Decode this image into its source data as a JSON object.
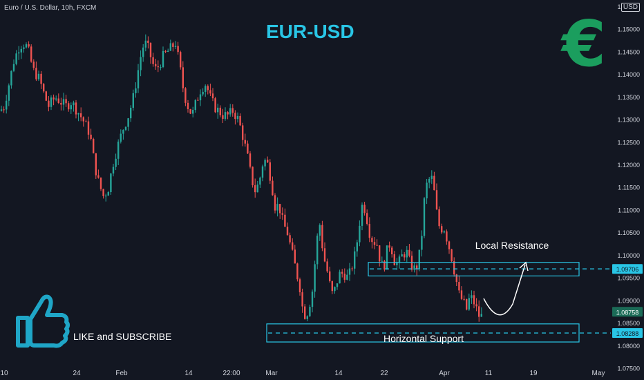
{
  "header": {
    "symbol": "Euro / U.S. Dollar, 10h, FXCM",
    "currency": "USD",
    "title": "EUR-USD",
    "euro_glyph": "€",
    "like_text": "LIKE and SUBSCRIBE"
  },
  "chart_data": {
    "type": "candlestick",
    "title": "EUR-USD",
    "x_ticks": [
      "10",
      "24",
      "Feb",
      "14",
      "22:00",
      "Mar",
      "14",
      "22",
      "Apr",
      "11",
      "19",
      "May"
    ],
    "y_ticks": [
      1.075,
      1.08,
      1.085,
      1.09,
      1.095,
      1.1,
      1.105,
      1.11,
      1.115,
      1.12,
      1.125,
      1.13,
      1.135,
      1.14,
      1.145,
      1.15,
      1.155
    ],
    "ylim": [
      1.0725,
      1.1565
    ],
    "price_path": [
      [
        0,
        1.132
      ],
      [
        6,
        1.133
      ],
      [
        13,
        1.138
      ],
      [
        20,
        1.143
      ],
      [
        27,
        1.146
      ],
      [
        33,
        1.147
      ],
      [
        40,
        1.146
      ],
      [
        48,
        1.141
      ],
      [
        57,
        1.139
      ],
      [
        63,
        1.136
      ],
      [
        70,
        1.133
      ],
      [
        80,
        1.135
      ],
      [
        88,
        1.134
      ],
      [
        95,
        1.133
      ],
      [
        103,
        1.134
      ],
      [
        112,
        1.132
      ],
      [
        120,
        1.13
      ],
      [
        130,
        1.127
      ],
      [
        137,
        1.12
      ],
      [
        143,
        1.116
      ],
      [
        150,
        1.113
      ],
      [
        157,
        1.115
      ],
      [
        163,
        1.12
      ],
      [
        170,
        1.124
      ],
      [
        178,
        1.128
      ],
      [
        186,
        1.131
      ],
      [
        193,
        1.135
      ],
      [
        200,
        1.141
      ],
      [
        206,
        1.146
      ],
      [
        212,
        1.147
      ],
      [
        218,
        1.144
      ],
      [
        224,
        1.141
      ],
      [
        230,
        1.142
      ],
      [
        236,
        1.144
      ],
      [
        242,
        1.145
      ],
      [
        248,
        1.146
      ],
      [
        254,
        1.147
      ],
      [
        260,
        1.142
      ],
      [
        266,
        1.136
      ],
      [
        272,
        1.133
      ],
      [
        278,
        1.131
      ],
      [
        284,
        1.134
      ],
      [
        291,
        1.137
      ],
      [
        298,
        1.138
      ],
      [
        304,
        1.135
      ],
      [
        310,
        1.133
      ],
      [
        316,
        1.132
      ],
      [
        323,
        1.131
      ],
      [
        330,
        1.131
      ],
      [
        337,
        1.132
      ],
      [
        345,
        1.13
      ],
      [
        352,
        1.126
      ],
      [
        358,
        1.122
      ],
      [
        364,
        1.117
      ],
      [
        370,
        1.114
      ],
      [
        376,
        1.117
      ],
      [
        381,
        1.121
      ],
      [
        386,
        1.121
      ],
      [
        392,
        1.117
      ],
      [
        398,
        1.111
      ],
      [
        404,
        1.111
      ],
      [
        410,
        1.107
      ],
      [
        416,
        1.105
      ],
      [
        422,
        1.101
      ],
      [
        428,
        1.097
      ],
      [
        434,
        1.093
      ],
      [
        439,
        1.087
      ],
      [
        444,
        1.087
      ],
      [
        449,
        1.09
      ],
      [
        453,
        1.093
      ],
      [
        458,
        1.103
      ],
      [
        463,
        1.107
      ],
      [
        468,
        1.1
      ],
      [
        473,
        1.097
      ],
      [
        478,
        1.093
      ],
      [
        482,
        1.091
      ],
      [
        487,
        1.094
      ],
      [
        492,
        1.096
      ],
      [
        498,
        1.096
      ],
      [
        504,
        1.095
      ],
      [
        510,
        1.098
      ],
      [
        515,
        1.101
      ],
      [
        520,
        1.107
      ],
      [
        525,
        1.112
      ],
      [
        530,
        1.109
      ],
      [
        535,
        1.105
      ],
      [
        540,
        1.103
      ],
      [
        545,
        1.103
      ],
      [
        550,
        1.099
      ],
      [
        555,
        1.097
      ],
      [
        560,
        1.101
      ],
      [
        565,
        1.103
      ],
      [
        570,
        1.099
      ],
      [
        576,
        1.098
      ],
      [
        582,
        1.1
      ],
      [
        588,
        1.101
      ],
      [
        594,
        1.098
      ],
      [
        600,
        1.097
      ],
      [
        605,
        1.098
      ],
      [
        610,
        1.104
      ],
      [
        614,
        1.112
      ],
      [
        618,
        1.116
      ],
      [
        622,
        1.117
      ],
      [
        626,
        1.117
      ],
      [
        630,
        1.112
      ],
      [
        634,
        1.107
      ],
      [
        638,
        1.106
      ],
      [
        643,
        1.106
      ],
      [
        648,
        1.103
      ],
      [
        653,
        1.1
      ],
      [
        657,
        1.097
      ],
      [
        661,
        1.094
      ],
      [
        665,
        1.091
      ],
      [
        670,
        1.09
      ],
      [
        675,
        1.088
      ],
      [
        680,
        1.091
      ],
      [
        685,
        1.09
      ],
      [
        690,
        1.088
      ],
      [
        695,
        1.086
      ],
      [
        700,
        1.0876
      ]
    ],
    "current_price": "1.08758",
    "resistance_level": "1.09706",
    "support_level": "1.08288",
    "annotations": {
      "resistance_label": "Local Resistance",
      "support_label": "Horizontal Support"
    },
    "resistance_box": [
      1.0955,
      1.0985
    ],
    "support_box": [
      1.0809,
      1.0849
    ],
    "colors": {
      "up": "#26a69a",
      "down": "#ef5350",
      "box": "#29c6e6",
      "dashed": "#29c6e6",
      "current_tag": "#1b6b57",
      "euro": "#1b9e5e",
      "title": "#29c6e6"
    }
  }
}
